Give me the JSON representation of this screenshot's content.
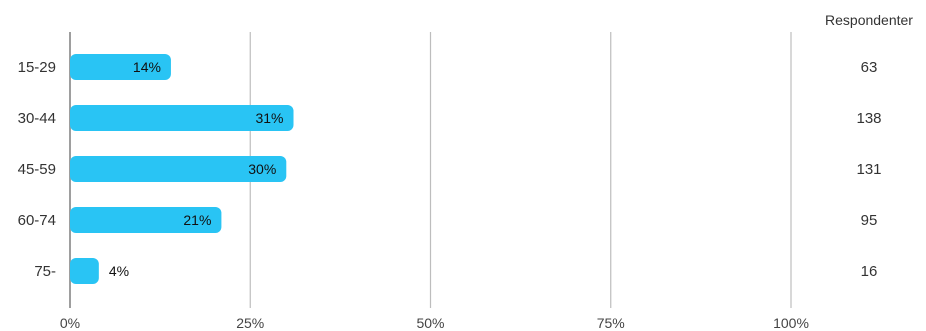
{
  "chart_data": {
    "type": "bar",
    "orientation": "horizontal",
    "categories": [
      "15-29",
      "30-44",
      "45-59",
      "60-74",
      "75-"
    ],
    "values": [
      14,
      31,
      30,
      21,
      4
    ],
    "value_labels": [
      "14%",
      "31%",
      "30%",
      "21%",
      "4%"
    ],
    "respondents": {
      "header": "Respondenter",
      "values": [
        "63",
        "138",
        "131",
        "95",
        "16"
      ]
    },
    "xlim": [
      0,
      100
    ],
    "xticks": [
      0,
      25,
      50,
      75,
      100
    ],
    "xtick_labels": [
      "0%",
      "25%",
      "50%",
      "75%",
      "100%"
    ],
    "grid": true,
    "bar_color": "#29c4f4",
    "grid_color": "#bdbdbd",
    "axis_color": "#9e9e9e"
  }
}
